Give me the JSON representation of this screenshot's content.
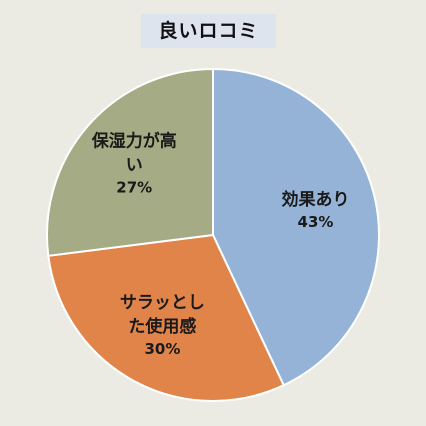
{
  "chart_data": {
    "type": "pie",
    "title": "良いロコミ",
    "slices": [
      {
        "label_lines": [
          "効果あり"
        ],
        "value": 43,
        "value_label": "43%",
        "color": "#95b3d7"
      },
      {
        "label_lines": [
          "サラッとし",
          "た使用感"
        ],
        "value": 30,
        "value_label": "30%",
        "color": "#e0844a"
      },
      {
        "label_lines": [
          "保湿力が高",
          "い"
        ],
        "value": 27,
        "value_label": "27%",
        "color": "#a5ab84"
      }
    ],
    "start": "12 o'clock",
    "direction": "clockwise",
    "legend": "none"
  }
}
